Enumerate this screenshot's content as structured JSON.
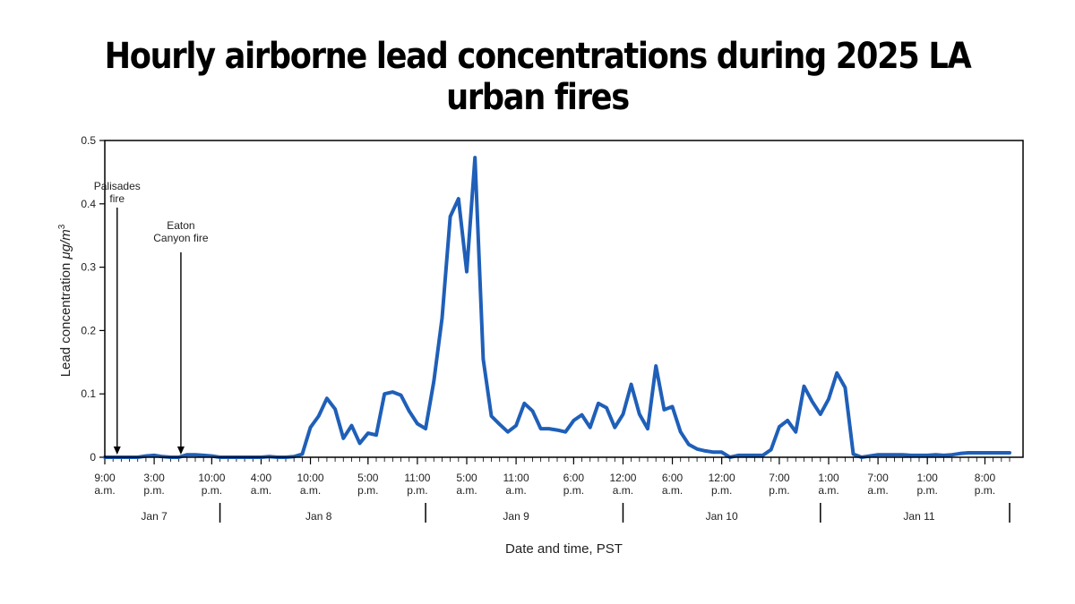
{
  "title": "Hourly airborne lead concentrations during 2025 LA urban fires",
  "chart_data": {
    "type": "line",
    "title": "Hourly airborne lead concentrations during 2025 LA urban fires",
    "xlabel": "Date and time, PST",
    "ylabel_main": "Lead concentration ",
    "ylabel_unit": "μg/m",
    "ylabel_sup": "3",
    "ylim": [
      0,
      0.5
    ],
    "y_ticks": [
      "0",
      "0.1",
      "0.2",
      "0.3",
      "0.4",
      "0.5"
    ],
    "x_start": "2025-01-07 09:00",
    "x_end": "2025-01-11 23:00",
    "x_tick_labels": [
      {
        "t": "2025-01-07 09:00",
        "line1": "9:00",
        "line2": "a.m."
      },
      {
        "t": "2025-01-07 15:00",
        "line1": "3:00",
        "line2": "p.m."
      },
      {
        "t": "2025-01-07 22:00",
        "line1": "10:00",
        "line2": "p.m."
      },
      {
        "t": "2025-01-08 04:00",
        "line1": "4:00",
        "line2": "a.m."
      },
      {
        "t": "2025-01-08 10:00",
        "line1": "10:00",
        "line2": "a.m."
      },
      {
        "t": "2025-01-08 17:00",
        "line1": "5:00",
        "line2": "p.m."
      },
      {
        "t": "2025-01-08 23:00",
        "line1": "11:00",
        "line2": "p.m."
      },
      {
        "t": "2025-01-09 05:00",
        "line1": "5:00",
        "line2": "a.m."
      },
      {
        "t": "2025-01-09 11:00",
        "line1": "11:00",
        "line2": "a.m."
      },
      {
        "t": "2025-01-09 18:00",
        "line1": "6:00",
        "line2": "p.m."
      },
      {
        "t": "2025-01-10 00:00",
        "line1": "12:00",
        "line2": "a.m."
      },
      {
        "t": "2025-01-10 06:00",
        "line1": "6:00",
        "line2": "a.m."
      },
      {
        "t": "2025-01-10 12:00",
        "line1": "12:00",
        "line2": "p.m."
      },
      {
        "t": "2025-01-10 19:00",
        "line1": "7:00",
        "line2": "p.m."
      },
      {
        "t": "2025-01-11 01:00",
        "line1": "1:00",
        "line2": "a.m."
      },
      {
        "t": "2025-01-11 07:00",
        "line1": "7:00",
        "line2": "a.m."
      },
      {
        "t": "2025-01-11 13:00",
        "line1": "1:00",
        "line2": "p.m."
      },
      {
        "t": "2025-01-11 20:00",
        "line1": "8:00",
        "line2": "p.m."
      }
    ],
    "day_dividers": [
      "2025-01-07 23:00",
      "2025-01-09 00:00",
      "2025-01-10 00:00",
      "2025-01-11 00:00",
      "2025-01-11 23:00"
    ],
    "day_labels": [
      {
        "label": "Jan 7",
        "t": "2025-01-07 15:00"
      },
      {
        "label": "Jan 8",
        "t": "2025-01-08 11:00"
      },
      {
        "label": "Jan 9",
        "t": "2025-01-09 11:00"
      },
      {
        "label": "Jan 10",
        "t": "2025-01-10 12:00"
      },
      {
        "label": "Jan 11",
        "t": "2025-01-11 12:00"
      }
    ],
    "annotations": [
      {
        "line1": "Palisades",
        "line2": "fire",
        "t": "2025-01-07 10:30"
      },
      {
        "line1": "Eaton",
        "line2": "Canyon fire",
        "t": "2025-01-07 18:15"
      }
    ],
    "series": [
      {
        "color": "#1f5fb8",
        "x": [
          "2025-01-07 09:00",
          "2025-01-07 10:00",
          "2025-01-07 11:00",
          "2025-01-07 12:00",
          "2025-01-07 13:00",
          "2025-01-07 14:00",
          "2025-01-07 15:00",
          "2025-01-07 16:00",
          "2025-01-07 17:00",
          "2025-01-07 18:00",
          "2025-01-07 19:00",
          "2025-01-07 20:00",
          "2025-01-07 21:00",
          "2025-01-07 22:00",
          "2025-01-07 23:00",
          "2025-01-08 00:00",
          "2025-01-08 01:00",
          "2025-01-08 02:00",
          "2025-01-08 03:00",
          "2025-01-08 04:00",
          "2025-01-08 05:00",
          "2025-01-08 06:00",
          "2025-01-08 07:00",
          "2025-01-08 08:00",
          "2025-01-08 09:00",
          "2025-01-08 10:00",
          "2025-01-08 11:00",
          "2025-01-08 12:00",
          "2025-01-08 13:00",
          "2025-01-08 14:00",
          "2025-01-08 15:00",
          "2025-01-08 16:00",
          "2025-01-08 17:00",
          "2025-01-08 18:00",
          "2025-01-08 19:00",
          "2025-01-08 20:00",
          "2025-01-08 21:00",
          "2025-01-08 22:00",
          "2025-01-08 23:00",
          "2025-01-09 00:00",
          "2025-01-09 01:00",
          "2025-01-09 02:00",
          "2025-01-09 03:00",
          "2025-01-09 04:00",
          "2025-01-09 05:00",
          "2025-01-09 06:00",
          "2025-01-09 07:00",
          "2025-01-09 08:00",
          "2025-01-09 09:00",
          "2025-01-09 10:00",
          "2025-01-09 11:00",
          "2025-01-09 12:00",
          "2025-01-09 13:00",
          "2025-01-09 14:00",
          "2025-01-09 15:00",
          "2025-01-09 16:00",
          "2025-01-09 17:00",
          "2025-01-09 18:00",
          "2025-01-09 19:00",
          "2025-01-09 20:00",
          "2025-01-09 21:00",
          "2025-01-09 22:00",
          "2025-01-09 23:00",
          "2025-01-10 00:00",
          "2025-01-10 01:00",
          "2025-01-10 02:00",
          "2025-01-10 03:00",
          "2025-01-10 04:00",
          "2025-01-10 05:00",
          "2025-01-10 06:00",
          "2025-01-10 07:00",
          "2025-01-10 08:00",
          "2025-01-10 09:00",
          "2025-01-10 10:00",
          "2025-01-10 11:00",
          "2025-01-10 12:00",
          "2025-01-10 13:00",
          "2025-01-10 14:00",
          "2025-01-10 15:00",
          "2025-01-10 16:00",
          "2025-01-10 17:00",
          "2025-01-10 18:00",
          "2025-01-10 19:00",
          "2025-01-10 20:00",
          "2025-01-10 21:00",
          "2025-01-10 22:00",
          "2025-01-10 23:00",
          "2025-01-11 00:00",
          "2025-01-11 01:00",
          "2025-01-11 02:00",
          "2025-01-11 03:00",
          "2025-01-11 04:00",
          "2025-01-11 05:00",
          "2025-01-11 06:00",
          "2025-01-11 07:00",
          "2025-01-11 08:00",
          "2025-01-11 09:00",
          "2025-01-11 10:00",
          "2025-01-11 11:00",
          "2025-01-11 12:00",
          "2025-01-11 13:00",
          "2025-01-11 14:00",
          "2025-01-11 15:00",
          "2025-01-11 16:00",
          "2025-01-11 17:00",
          "2025-01-11 18:00",
          "2025-01-11 19:00",
          "2025-01-11 20:00",
          "2025-01-11 21:00",
          "2025-01-11 22:00",
          "2025-01-11 23:00"
        ],
        "values": [
          0.0,
          0.0,
          0.0,
          0.0,
          0.0,
          0.002,
          0.003,
          0.001,
          0.0,
          0.0,
          0.004,
          0.004,
          0.003,
          0.002,
          0.0,
          0.0,
          0.0,
          0.0,
          0.0,
          0.0,
          0.001,
          0.0,
          0.0,
          0.001,
          0.005,
          0.047,
          0.065,
          0.093,
          0.076,
          0.03,
          0.05,
          0.022,
          0.038,
          0.035,
          0.1,
          0.103,
          0.098,
          0.073,
          0.053,
          0.045,
          0.12,
          0.22,
          0.38,
          0.408,
          0.293,
          0.473,
          0.155,
          0.065,
          0.052,
          0.04,
          0.05,
          0.085,
          0.073,
          0.045,
          0.045,
          0.043,
          0.04,
          0.058,
          0.067,
          0.047,
          0.085,
          0.078,
          0.047,
          0.068,
          0.115,
          0.068,
          0.045,
          0.144,
          0.075,
          0.08,
          0.04,
          0.02,
          0.013,
          0.01,
          0.008,
          0.008,
          0.0,
          0.003,
          0.003,
          0.003,
          0.003,
          0.012,
          0.048,
          0.058,
          0.04,
          0.112,
          0.088,
          0.068,
          0.092,
          0.133,
          0.11,
          0.005,
          0.0,
          0.002,
          0.004,
          0.004,
          0.004,
          0.004,
          0.003,
          0.003,
          0.003,
          0.004,
          0.003,
          0.004,
          0.006,
          0.007,
          0.007,
          0.007,
          0.007,
          0.007,
          0.007
        ]
      }
    ]
  }
}
